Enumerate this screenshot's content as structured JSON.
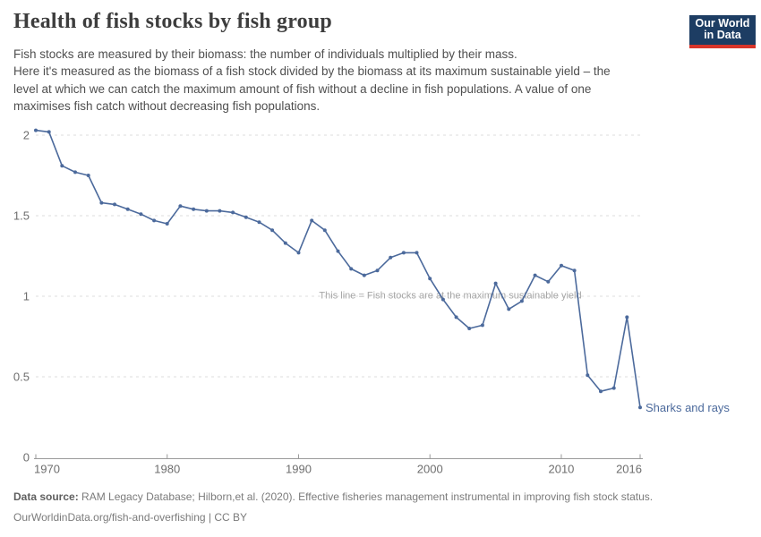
{
  "header": {
    "title": "Health of fish stocks by fish group",
    "subtitle_lines": [
      "Fish stocks are measured by their biomass: the number of individuals multiplied by their mass.",
      "Here it's measured as the biomass of a fish stock divided by the biomass at its maximum sustainable yield – the",
      "level at which we can catch the maximum amount of fish without a decline in fish populations. A value of one",
      "maximises fish catch without decreasing fish populations."
    ],
    "logo": {
      "line1": "Our World",
      "line2": "in Data"
    }
  },
  "chart_data": {
    "type": "line",
    "title": "Health of fish stocks by fish group",
    "xlabel": "",
    "ylabel": "",
    "xlim": [
      1970,
      2016
    ],
    "ylim": [
      0,
      2.1
    ],
    "grid": "horizontal-dashed",
    "legend_position": "end-of-line-label",
    "annotation": "This line = Fish stocks are at the maximum sustainable yield",
    "annotation_at_y": 1,
    "x_ticks": [
      {
        "value": 1970,
        "label": "1970",
        "align": "start"
      },
      {
        "value": 1980,
        "label": "1980",
        "align": "middle"
      },
      {
        "value": 1990,
        "label": "1990",
        "align": "middle"
      },
      {
        "value": 2000,
        "label": "2000",
        "align": "middle"
      },
      {
        "value": 2010,
        "label": "2010",
        "align": "middle"
      },
      {
        "value": 2016,
        "label": "2016",
        "align": "end"
      }
    ],
    "y_ticks": [
      {
        "value": 0,
        "label": "0"
      },
      {
        "value": 0.5,
        "label": "0.5"
      },
      {
        "value": 1,
        "label": "1"
      },
      {
        "value": 1.5,
        "label": "1.5"
      },
      {
        "value": 2,
        "label": "2"
      }
    ],
    "series": [
      {
        "name": "Sharks and rays",
        "x": [
          1970,
          1971,
          1972,
          1973,
          1974,
          1975,
          1976,
          1977,
          1978,
          1979,
          1980,
          1981,
          1982,
          1983,
          1984,
          1985,
          1986,
          1987,
          1988,
          1989,
          1990,
          1991,
          1992,
          1993,
          1994,
          1995,
          1996,
          1997,
          1998,
          1999,
          2000,
          2001,
          2002,
          2003,
          2004,
          2005,
          2006,
          2007,
          2008,
          2009,
          2010,
          2011,
          2012,
          2013,
          2014,
          2015,
          2016
        ],
        "values": [
          2.03,
          2.02,
          1.81,
          1.77,
          1.75,
          1.58,
          1.57,
          1.54,
          1.51,
          1.47,
          1.45,
          1.56,
          1.54,
          1.53,
          1.53,
          1.52,
          1.49,
          1.46,
          1.41,
          1.33,
          1.27,
          1.47,
          1.41,
          1.28,
          1.17,
          1.13,
          1.16,
          1.24,
          1.27,
          1.27,
          1.11,
          0.98,
          0.87,
          0.8,
          0.82,
          1.08,
          0.92,
          0.97,
          1.13,
          1.09,
          1.19,
          1.16,
          0.51,
          0.41,
          0.43,
          0.87,
          0.31
        ]
      }
    ]
  },
  "colors": {
    "line": "#4C6A9C",
    "grid": "#dcdcdc",
    "axis": "#9a9a9a",
    "tick_label": "#6e6e6e",
    "annotation": "#a6a6a6",
    "logo_bg": "#1d3d63",
    "logo_stripe": "#d8352a"
  },
  "footer": {
    "source_label": "Data source:",
    "source_text": " RAM Legacy Database; Hilborn,et al. (2020). Effective fisheries management instrumental in improving fish stock status.",
    "license_line": "OurWorldinData.org/fish-and-overfishing | CC BY"
  }
}
